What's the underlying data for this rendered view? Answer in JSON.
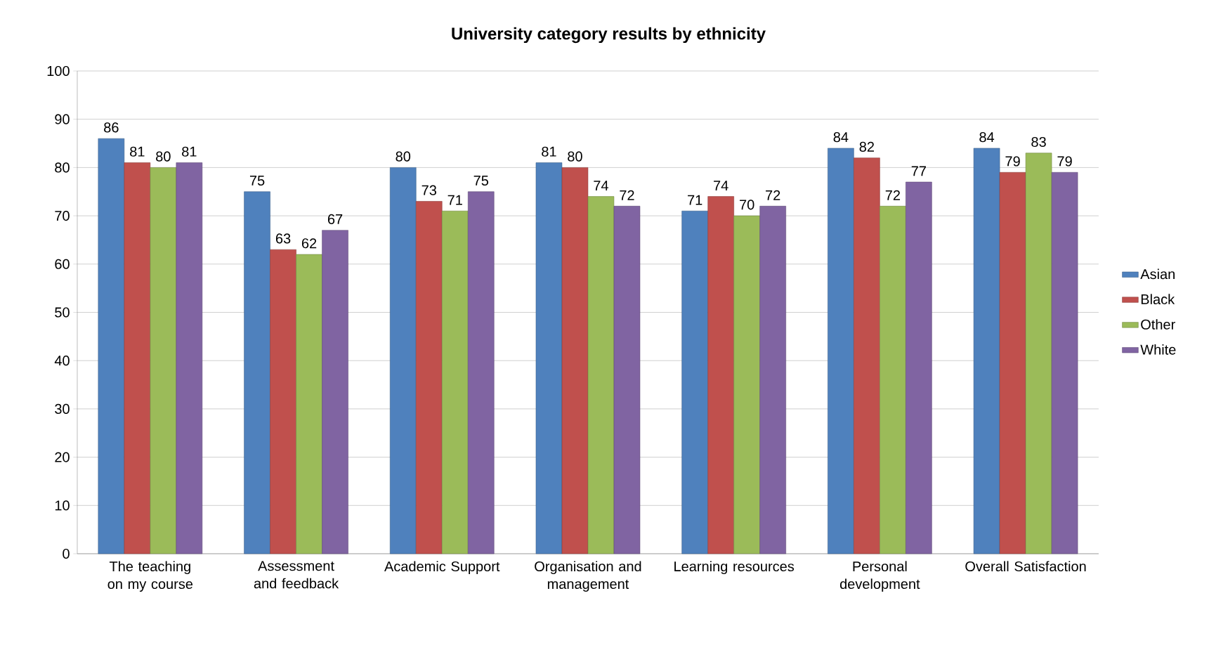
{
  "chart_data": {
    "type": "bar",
    "title": "University category results by ethnicity",
    "categories": [
      "The teaching on my course",
      "Assessment and feedback",
      "Academic Support",
      "Organisation and management",
      "Learning resources",
      "Personal development",
      "Overall Satisfaction"
    ],
    "series": [
      {
        "name": "Asian",
        "color": "#4f81bd",
        "values": [
          86,
          75,
          80,
          81,
          71,
          84,
          84
        ]
      },
      {
        "name": "Black",
        "color": "#c0504d",
        "values": [
          81,
          63,
          73,
          80,
          74,
          82,
          79
        ]
      },
      {
        "name": "Other",
        "color": "#9bbb59",
        "values": [
          80,
          62,
          71,
          74,
          70,
          72,
          83
        ]
      },
      {
        "name": "White",
        "color": "#8064a2",
        "values": [
          81,
          67,
          75,
          72,
          72,
          77,
          79
        ]
      }
    ],
    "ylim": [
      0,
      100
    ],
    "yticks": [
      0,
      10,
      20,
      30,
      40,
      50,
      60,
      70,
      80,
      90,
      100
    ],
    "grid": "y",
    "legend": "right",
    "data_labels": true
  }
}
